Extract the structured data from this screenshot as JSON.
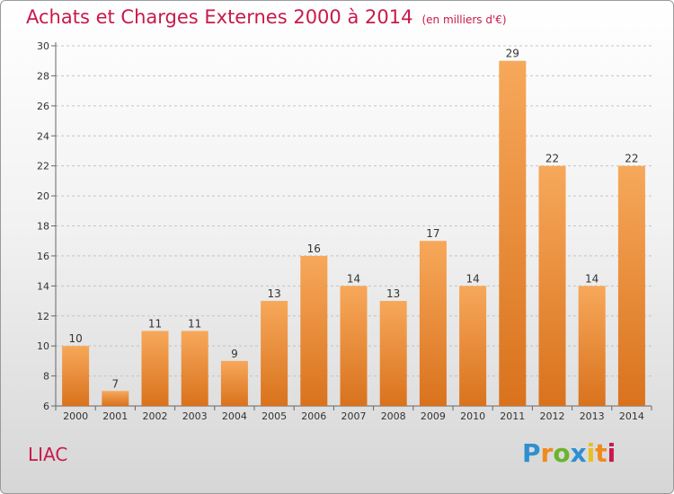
{
  "header": {
    "title": "Achats et Charges Externes 2000 à 2014",
    "unit": "(en milliers d'€)"
  },
  "footer": {
    "commune": "LIAC",
    "brand": "Proxiti"
  },
  "colors": {
    "title": "#c8194b",
    "bar_top": "#f7a85a",
    "bar_bottom": "#d9721d"
  },
  "chart_data": {
    "type": "bar",
    "title": "Achats et Charges Externes 2000 à 2014",
    "subtitle": "(en milliers d'€)",
    "categories": [
      "2000",
      "2001",
      "2002",
      "2003",
      "2004",
      "2005",
      "2006",
      "2007",
      "2008",
      "2009",
      "2010",
      "2011",
      "2012",
      "2013",
      "2014"
    ],
    "values": [
      10,
      7,
      11,
      11,
      9,
      13,
      16,
      14,
      13,
      17,
      14,
      29,
      22,
      14,
      22
    ],
    "ylim": [
      6,
      30
    ],
    "yticks": [
      6,
      8,
      10,
      12,
      14,
      16,
      18,
      20,
      22,
      24,
      26,
      28,
      30
    ],
    "grid": true,
    "data_labels": true
  }
}
